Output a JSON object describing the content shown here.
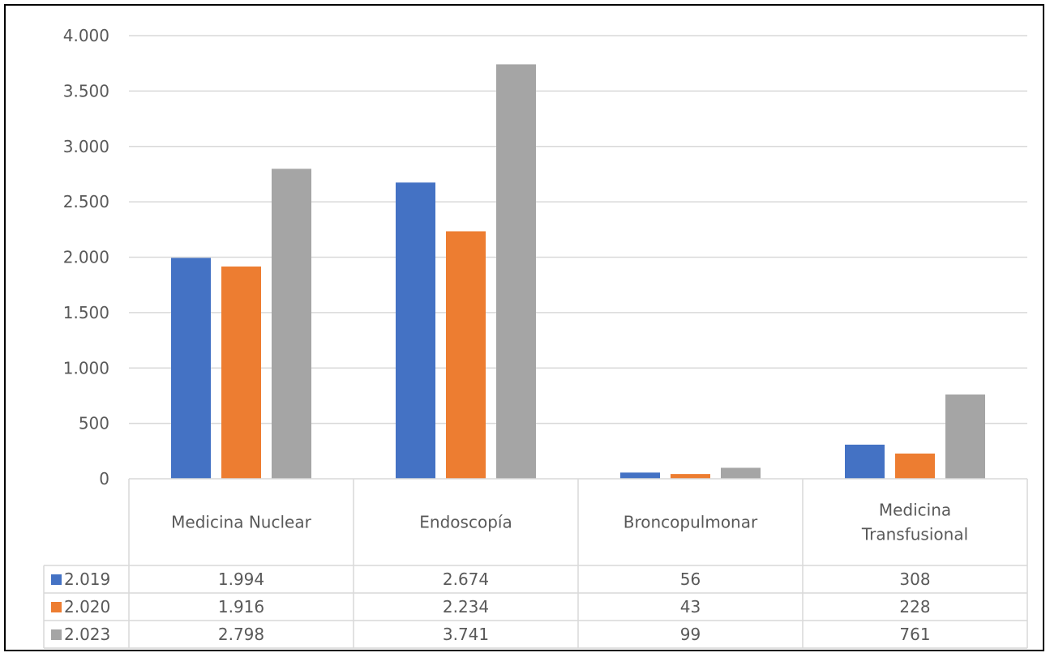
{
  "chart_data": {
    "type": "bar",
    "categories": [
      [
        "Medicina Nuclear"
      ],
      [
        "Endoscopía"
      ],
      [
        "Broncopulmonar"
      ],
      [
        "Medicina",
        "Transfusional"
      ]
    ],
    "series": [
      {
        "name": "2.019",
        "color": "#4472C4",
        "values": [
          1994,
          2674,
          56,
          308
        ]
      },
      {
        "name": "2.020",
        "color": "#ED7D31",
        "values": [
          1916,
          2234,
          43,
          228
        ]
      },
      {
        "name": "2.023",
        "color": "#A5A5A5",
        "values": [
          2798,
          3741,
          99,
          761
        ]
      }
    ],
    "table_values": [
      [
        "1.994",
        "2.674",
        "56",
        "308"
      ],
      [
        "1.916",
        "2.234",
        "43",
        "228"
      ],
      [
        "2.798",
        "3.741",
        "99",
        "761"
      ]
    ],
    "y_ticks": [
      {
        "value": 0,
        "label": "0"
      },
      {
        "value": 500,
        "label": "500"
      },
      {
        "value": 1000,
        "label": "1.000"
      },
      {
        "value": 1500,
        "label": "1.500"
      },
      {
        "value": 2000,
        "label": "2.000"
      },
      {
        "value": 2500,
        "label": "2.500"
      },
      {
        "value": 3000,
        "label": "3.000"
      },
      {
        "value": 3500,
        "label": "3.500"
      },
      {
        "value": 4000,
        "label": "4.000"
      }
    ],
    "ylim": [
      0,
      4000
    ],
    "grid": true,
    "legend": "data-table"
  }
}
